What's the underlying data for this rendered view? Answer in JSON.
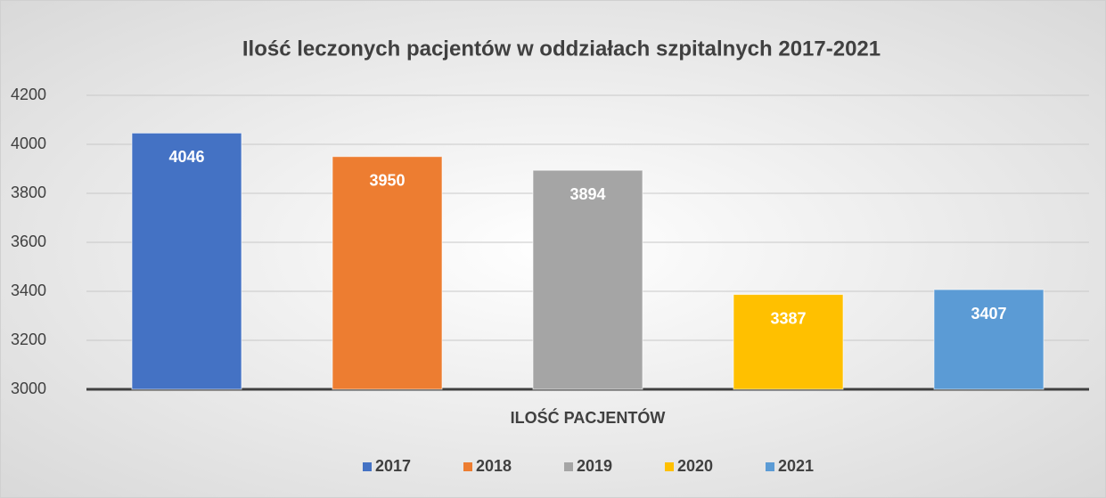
{
  "chart_data": {
    "type": "bar",
    "title": "Ilość leczonych pacjentów w oddziałach szpitalnych 2017-2021",
    "categories": [
      "ILOŚĆ PACJENTÓW"
    ],
    "series": [
      {
        "name": "2017",
        "color": "#4472c4",
        "values": [
          4046
        ]
      },
      {
        "name": "2018",
        "color": "#ed7d31",
        "values": [
          3950
        ]
      },
      {
        "name": "2019",
        "color": "#a5a5a5",
        "values": [
          3894
        ]
      },
      {
        "name": "2020",
        "color": "#ffc000",
        "values": [
          3387
        ]
      },
      {
        "name": "2021",
        "color": "#5b9bd5",
        "values": [
          3407
        ]
      }
    ],
    "ylim": [
      3000,
      4200
    ],
    "yticks": [
      3000,
      3200,
      3400,
      3600,
      3800,
      4000,
      4200
    ],
    "grid": true,
    "legend": "bottom"
  }
}
